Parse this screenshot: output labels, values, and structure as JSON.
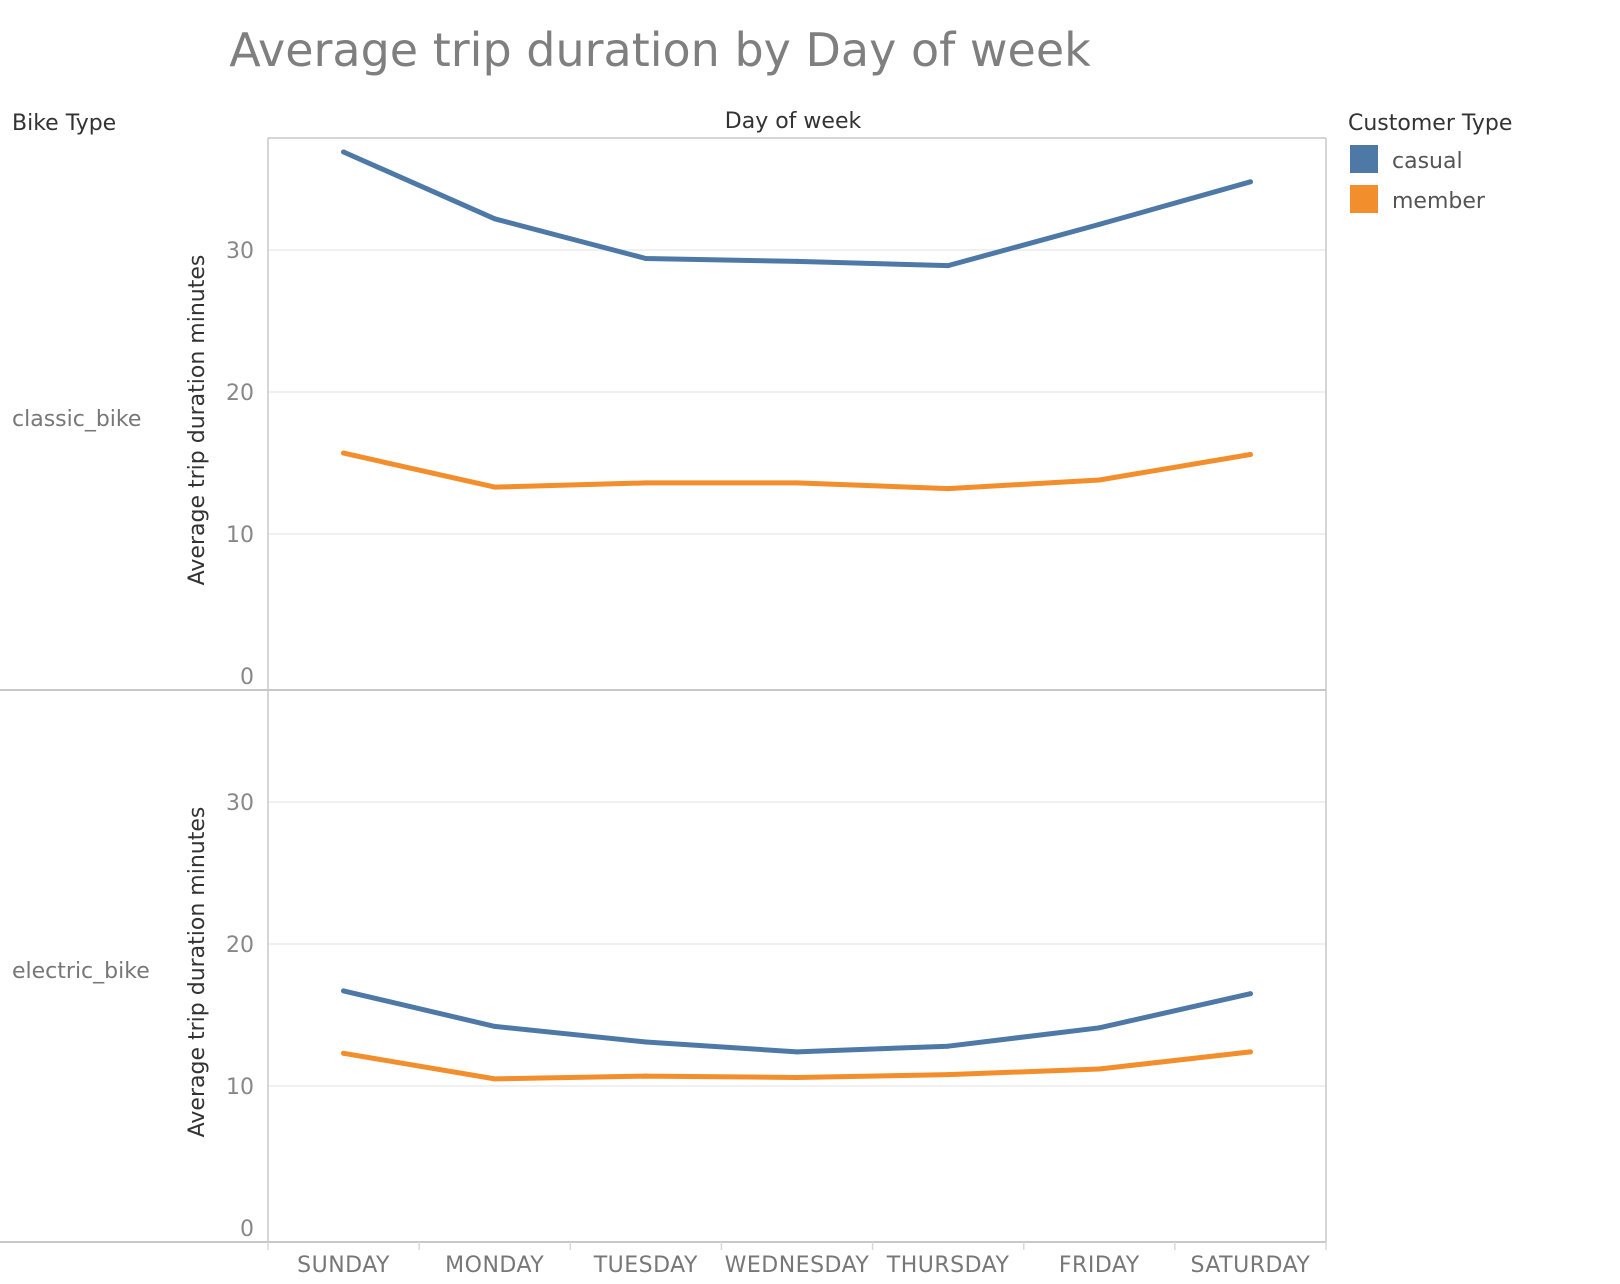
{
  "title": "Average trip duration by Day of week",
  "row_header": "Bike Type",
  "column_header": "Day of week",
  "legend": {
    "title": "Customer Type",
    "items": [
      {
        "label": "casual",
        "color": "#4e79a7"
      },
      {
        "label": "member",
        "color": "#f28e2b"
      }
    ]
  },
  "chart_data": {
    "type": "line",
    "title": "Average trip duration by Day of week",
    "xlabel": "Day of week",
    "ylabel": "Average trip duration minutes",
    "categories": [
      "SUNDAY",
      "MONDAY",
      "TUESDAY",
      "WEDNESDAY",
      "THURSDAY",
      "FRIDAY",
      "SATURDAY"
    ],
    "ylim": [
      0,
      38
    ],
    "yticks": [
      0,
      10,
      20,
      30
    ],
    "grid": true,
    "legend_position": "top-right",
    "panels": [
      {
        "label": "classic_bike",
        "series": [
          {
            "name": "casual",
            "color": "#4e79a7",
            "values": [
              36.9,
              32.2,
              29.4,
              29.2,
              28.9,
              31.8,
              34.8
            ]
          },
          {
            "name": "member",
            "color": "#f28e2b",
            "values": [
              15.7,
              13.3,
              13.6,
              13.6,
              13.2,
              13.8,
              15.6
            ]
          }
        ]
      },
      {
        "label": "electric_bike",
        "series": [
          {
            "name": "casual",
            "color": "#4e79a7",
            "values": [
              16.7,
              14.2,
              13.1,
              12.4,
              12.8,
              14.1,
              16.5
            ]
          },
          {
            "name": "member",
            "color": "#f28e2b",
            "values": [
              12.3,
              10.5,
              10.7,
              10.6,
              10.8,
              11.2,
              12.4
            ]
          }
        ]
      }
    ]
  }
}
